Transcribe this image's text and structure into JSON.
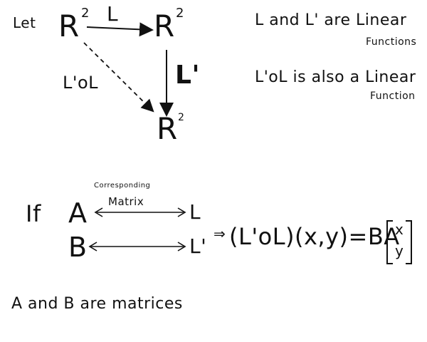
{
  "diagram": {
    "let_word": "Let",
    "space_letter": "R",
    "exponent": "2",
    "map_L": "L",
    "map_Lprime": "L'",
    "composite": "L'oL"
  },
  "notes": {
    "line1_a": "L and L' are Linear",
    "line1_b": "Functions",
    "line2_a": "L'oL is also a Linear",
    "line2_b": "Function"
  },
  "matrix_relation": {
    "if_word": "If",
    "matrix_A": "A",
    "matrix_B": "B",
    "caption_1": "Corresponding",
    "caption_2": "Matrix",
    "map_L": "L",
    "map_Lprime": "L'",
    "implies": "⇒",
    "composition_expr": "(L'oL)(x,y)=BA",
    "vector_top": "x",
    "vector_bottom": "y"
  },
  "footer": {
    "text": "A and B are matrices"
  }
}
